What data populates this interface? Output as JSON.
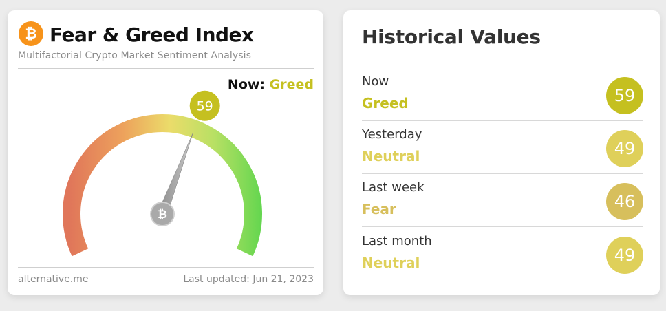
{
  "fear_greed": {
    "title": "Fear & Greed Index",
    "subtitle": "Multifactorial Crypto Market Sentiment Analysis",
    "logo_symbol": "₿",
    "now_label": "Now:",
    "now_classification": "Greed",
    "value": 59,
    "value_text": "59",
    "scale_min": 0,
    "scale_max": 100,
    "source": "alternative.me",
    "last_updated": "Last updated: Jun 21, 2023",
    "accent_color": "#c5c020"
  },
  "historical": {
    "title": "Historical Values",
    "rows": [
      {
        "period": "Now",
        "classification": "Greed",
        "value": "59",
        "badge_color": "#c5c020",
        "text_color": "#c5c020"
      },
      {
        "period": "Yesterday",
        "classification": "Neutral",
        "value": "49",
        "badge_color": "#dfd05a",
        "text_color": "#dfd05a"
      },
      {
        "period": "Last week",
        "classification": "Fear",
        "value": "46",
        "badge_color": "#d7bf5c",
        "text_color": "#d7bf5c"
      },
      {
        "period": "Last month",
        "classification": "Neutral",
        "value": "49",
        "badge_color": "#dfd05a",
        "text_color": "#dfd05a"
      }
    ]
  }
}
